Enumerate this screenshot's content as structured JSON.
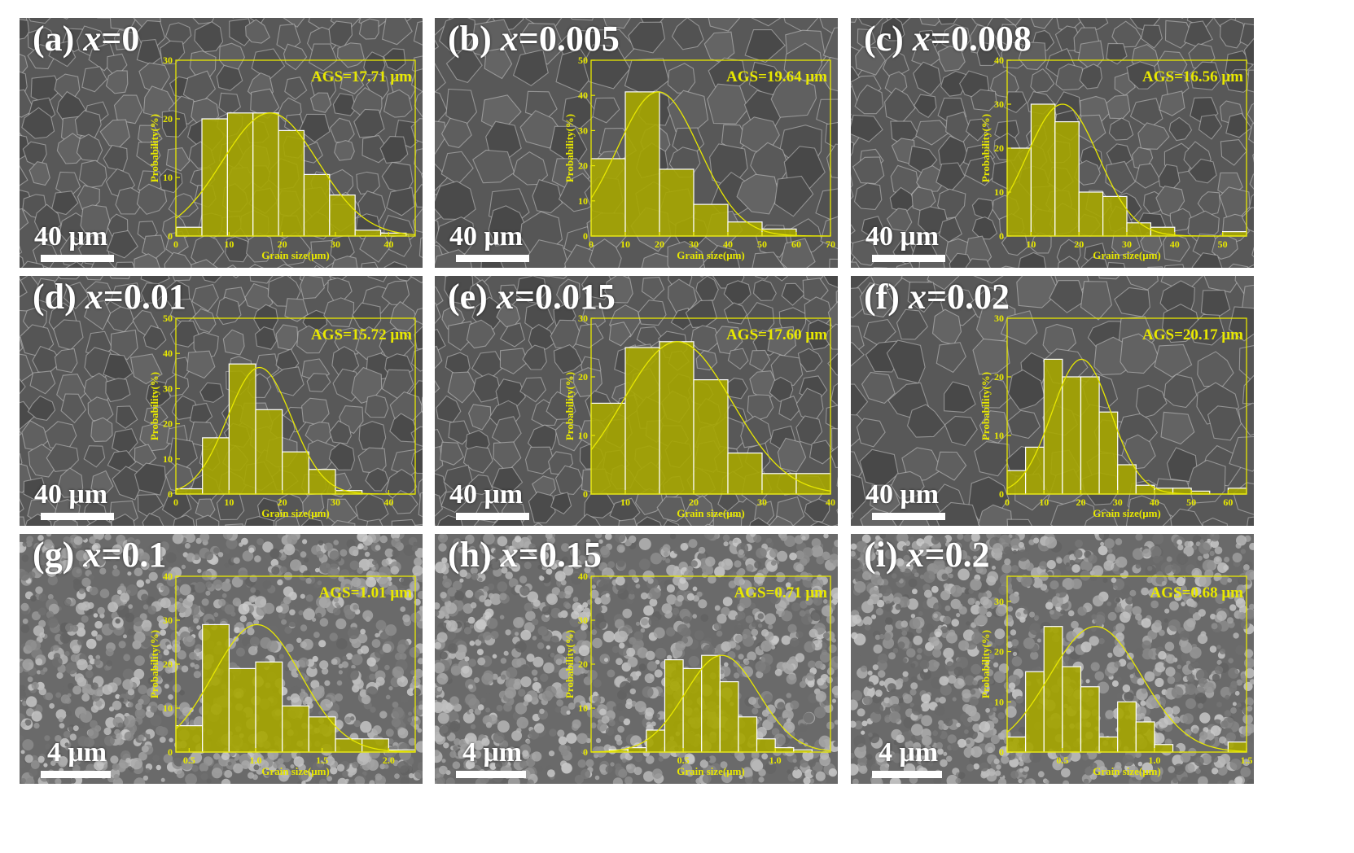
{
  "colors": {
    "accent": "#e8e800",
    "bar_fill": "#a6a600",
    "label": "#ffffff"
  },
  "x_variable": "x",
  "chart_data": [
    {
      "type": "bar",
      "panel_id": "a",
      "label": "(a)",
      "composition": "=0",
      "annotation": "AGS=17.71 μm",
      "scale_bar": "40 μm",
      "xlabel": "Grain size(μm)",
      "ylabel": "Probability(%)",
      "xlim": [
        0,
        45
      ],
      "ylim": [
        0,
        30
      ],
      "xticks": [
        0,
        10,
        20,
        30,
        40
      ],
      "yticks": [
        0,
        10,
        20,
        30
      ],
      "bin_width": 4.8,
      "bins": [
        0.1,
        4.9,
        9.7,
        14.5,
        19.3,
        24.1,
        28.9,
        33.7,
        38.5
      ],
      "values": [
        1.5,
        20,
        21,
        21,
        18,
        10.5,
        7,
        1,
        0.5
      ],
      "fit": {
        "type": "gaussian",
        "mean": 17.71,
        "sigma": 9,
        "peak": 21
      }
    },
    {
      "type": "bar",
      "panel_id": "b",
      "label": "(b)",
      "composition": "=0.005",
      "annotation": "AGS=19.64 μm",
      "scale_bar": "40 μm",
      "xlabel": "Grain size(μm)",
      "ylabel": "Probability(%)",
      "xlim": [
        0,
        70
      ],
      "ylim": [
        0,
        50
      ],
      "xticks": [
        0,
        10,
        20,
        30,
        40,
        50,
        60,
        70
      ],
      "yticks": [
        0,
        10,
        20,
        30,
        40,
        50
      ],
      "bin_width": 10,
      "bins": [
        0,
        10,
        20,
        30,
        40,
        50,
        60
      ],
      "values": [
        22,
        41,
        19,
        9,
        4,
        2,
        0
      ],
      "fit": {
        "type": "gaussian",
        "mean": 19.64,
        "sigma": 12,
        "peak": 41
      }
    },
    {
      "type": "bar",
      "panel_id": "c",
      "label": "(c)",
      "composition": "=0.008",
      "annotation": "AGS=16.56 μm",
      "scale_bar": "40 μm",
      "xlabel": "Grain size(μm)",
      "ylabel": "Probability(%)",
      "xlim": [
        5,
        55
      ],
      "ylim": [
        0,
        40
      ],
      "xticks": [
        10,
        20,
        30,
        40,
        50
      ],
      "yticks": [
        0,
        10,
        20,
        30,
        40
      ],
      "bin_width": 5,
      "bins": [
        5,
        10,
        15,
        20,
        25,
        30,
        35,
        40,
        45,
        50
      ],
      "values": [
        20,
        30,
        26,
        10,
        9,
        3,
        2,
        0,
        0,
        1
      ],
      "fit": {
        "type": "gaussian",
        "mean": 16.56,
        "sigma": 7.5,
        "peak": 30
      }
    },
    {
      "type": "bar",
      "panel_id": "d",
      "label": "(d)",
      "composition": "=0.01",
      "annotation": "AGS=15.72 μm",
      "scale_bar": "40 μm",
      "xlabel": "Grain size(μm)",
      "ylabel": "Probability(%)",
      "xlim": [
        0,
        45
      ],
      "ylim": [
        0,
        50
      ],
      "xticks": [
        0,
        10,
        20,
        30,
        40
      ],
      "yticks": [
        0,
        10,
        20,
        30,
        40,
        50
      ],
      "bin_width": 5,
      "bins": [
        0,
        5,
        10,
        15,
        20,
        25,
        30
      ],
      "values": [
        1.5,
        16,
        37,
        24,
        12,
        7,
        1
      ],
      "fit": {
        "type": "gaussian",
        "mean": 15.72,
        "sigma": 6,
        "peak": 36
      }
    },
    {
      "type": "bar",
      "panel_id": "e",
      "label": "(e)",
      "composition": "=0.015",
      "annotation": "AGS=17.60 μm",
      "scale_bar": "40 μm",
      "xlabel": "Grain size(μm)",
      "ylabel": "Probability(%)",
      "xlim": [
        5,
        40
      ],
      "ylim": [
        0,
        30
      ],
      "xticks": [
        10,
        20,
        30,
        40
      ],
      "yticks": [
        0,
        10,
        20,
        30
      ],
      "bin_width": 5,
      "bins": [
        5,
        10,
        15,
        20,
        25,
        30,
        35
      ],
      "values": [
        15.5,
        25,
        26,
        19.5,
        7,
        3.5,
        3.5
      ],
      "fit": {
        "type": "gaussian",
        "mean": 17.6,
        "sigma": 8,
        "peak": 26
      }
    },
    {
      "type": "bar",
      "panel_id": "f",
      "label": "(f)",
      "composition": "=0.02",
      "annotation": "AGS=20.17 μm",
      "scale_bar": "40 μm",
      "xlabel": "Grain size(μm)",
      "ylabel": "Probability(%)",
      "xlim": [
        0,
        65
      ],
      "ylim": [
        0,
        30
      ],
      "xticks": [
        0,
        10,
        20,
        30,
        40,
        50,
        60
      ],
      "yticks": [
        0,
        10,
        20,
        30
      ],
      "bin_width": 5,
      "bins": [
        0,
        5,
        10,
        15,
        20,
        25,
        30,
        35,
        40,
        45,
        50,
        55,
        60
      ],
      "values": [
        4,
        8,
        23,
        20,
        20,
        14,
        5,
        1.5,
        1,
        1,
        0.5,
        0,
        1
      ],
      "fit": {
        "type": "gaussian",
        "mean": 20.17,
        "sigma": 8,
        "peak": 23
      }
    },
    {
      "type": "bar",
      "panel_id": "g",
      "label": "(g)",
      "composition": "=0.1",
      "annotation": "AGS=1.01 μm",
      "scale_bar": "4 μm",
      "xlabel": "Grain size(μm)",
      "ylabel": "Probability(%)",
      "xlim": [
        0.4,
        2.2
      ],
      "ylim": [
        0,
        40
      ],
      "xticks": [
        0.5,
        1.0,
        1.5,
        2.0
      ],
      "xtick_labels": [
        "0.5",
        "1.0",
        "1.5",
        "2.0"
      ],
      "yticks": [
        0,
        10,
        20,
        30,
        40
      ],
      "bin_width": 0.2,
      "bins": [
        0.4,
        0.6,
        0.8,
        1.0,
        1.2,
        1.4,
        1.6,
        1.8,
        2.0
      ],
      "values": [
        6,
        29,
        19,
        20.5,
        10.5,
        8,
        3,
        3,
        0.5
      ],
      "fit": {
        "type": "gaussian",
        "mean": 1.01,
        "sigma": 0.33,
        "peak": 29
      }
    },
    {
      "type": "bar",
      "panel_id": "h",
      "label": "(h)",
      "composition": "=0.15",
      "annotation": "AGS=0.71 μm",
      "scale_bar": "4 μm",
      "xlabel": "Grain size(μm)",
      "ylabel": "Probability(%)",
      "xlim": [
        0,
        1.3
      ],
      "ylim": [
        0,
        40
      ],
      "xticks": [
        0.5,
        1.0
      ],
      "xtick_labels": [
        "0.5",
        "1.0"
      ],
      "yticks": [
        0,
        10,
        20,
        30,
        40
      ],
      "bin_width": 0.1,
      "bins": [
        0,
        0.1,
        0.2,
        0.3,
        0.4,
        0.5,
        0.6,
        0.7,
        0.8,
        0.9,
        1.0,
        1.1,
        1.2
      ],
      "values": [
        0,
        0.5,
        1,
        5,
        21,
        19,
        22,
        16,
        8,
        3,
        1,
        0.5,
        0
      ],
      "fit": {
        "type": "gaussian",
        "mean": 0.71,
        "sigma": 0.2,
        "peak": 22
      }
    },
    {
      "type": "bar",
      "panel_id": "i",
      "label": "(i)",
      "composition": "=0.2",
      "annotation": "AGS=0.68 μm",
      "scale_bar": "4 μm",
      "xlabel": "Grain size(μm)",
      "ylabel": "Probability(%)",
      "xlim": [
        0.2,
        1.5
      ],
      "ylim": [
        0,
        35
      ],
      "xticks": [
        0.5,
        1.0,
        1.5
      ],
      "xtick_labels": [
        "0.5",
        "1.0",
        "1.5"
      ],
      "yticks": [
        0,
        10,
        20,
        30
      ],
      "bin_width": 0.1,
      "bins": [
        0.2,
        0.3,
        0.4,
        0.5,
        0.6,
        0.7,
        0.8,
        0.9,
        1.0,
        1.1,
        1.2,
        1.3,
        1.4
      ],
      "values": [
        3,
        16,
        25,
        17,
        13,
        3,
        10,
        6,
        1.5,
        0,
        0,
        0,
        2
      ],
      "fit": {
        "type": "gaussian",
        "mean": 0.68,
        "sigma": 0.25,
        "peak": 25
      }
    }
  ]
}
